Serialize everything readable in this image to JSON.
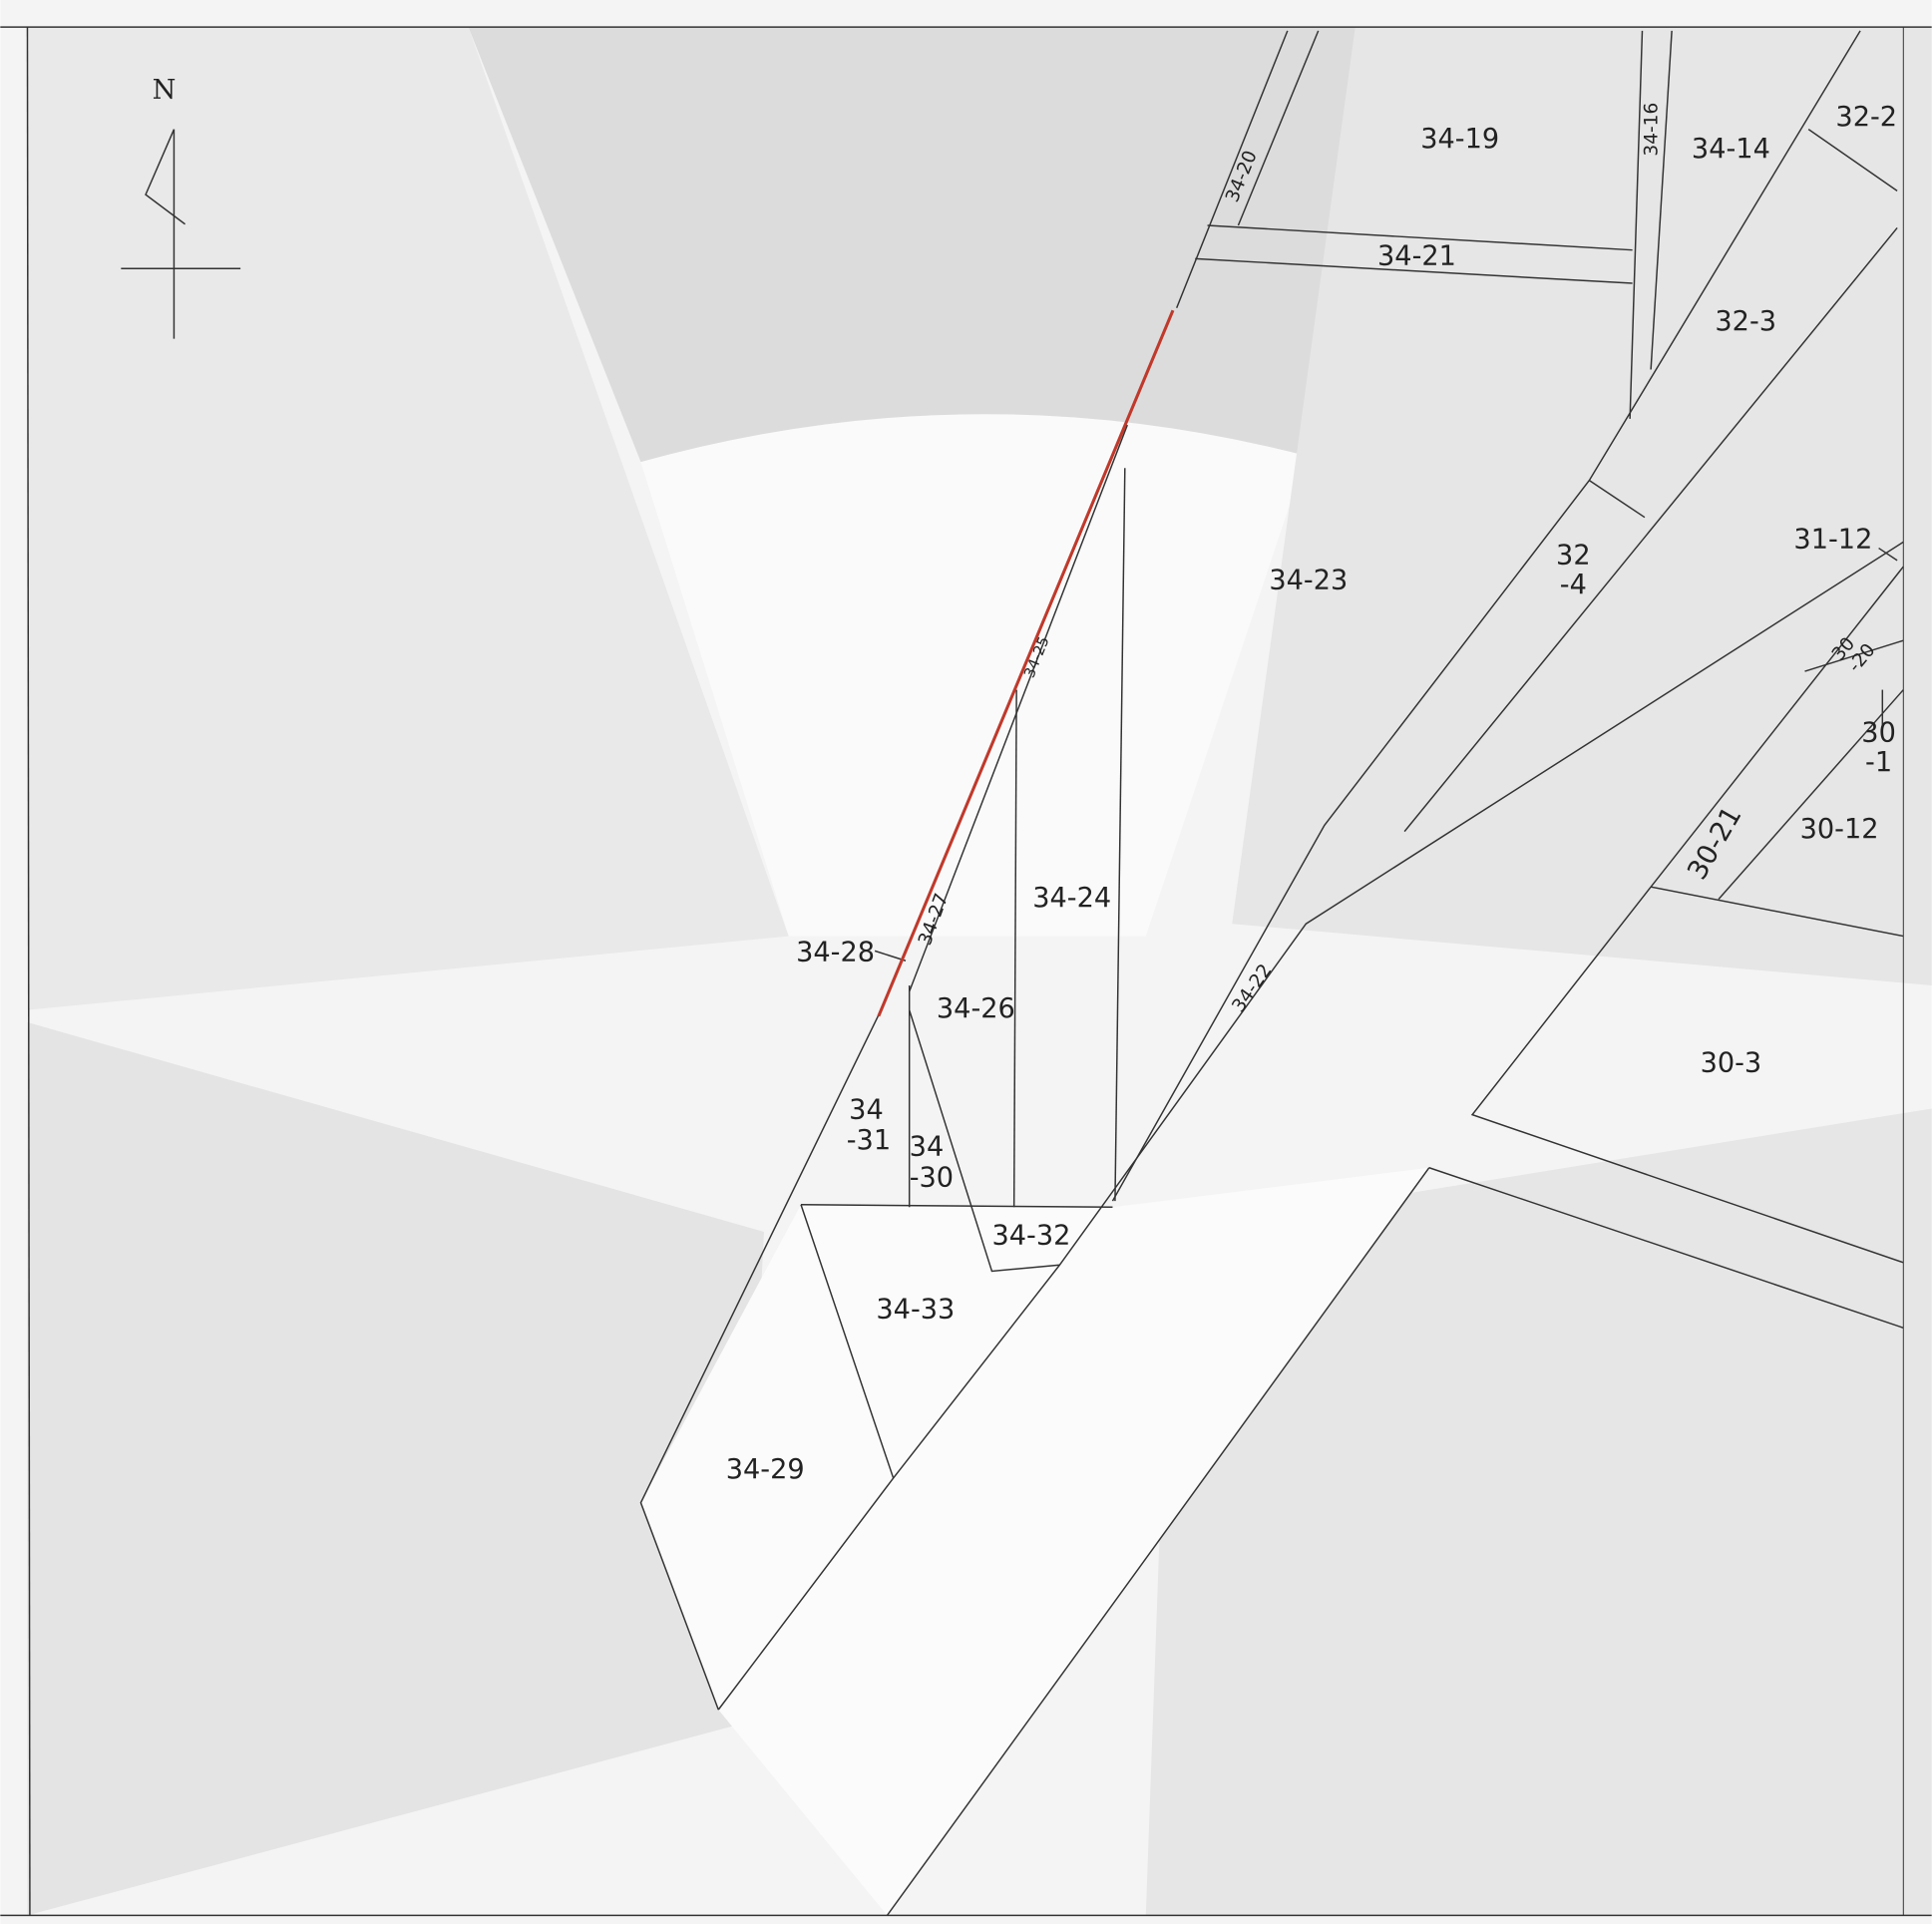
{
  "north_label": "N",
  "parcels": [
    {
      "lines": [
        "34-19"
      ]
    },
    {
      "lines": [
        "34-20"
      ]
    },
    {
      "lines": [
        "34-16"
      ]
    },
    {
      "lines": [
        "34-14"
      ]
    },
    {
      "lines": [
        "32-2"
      ]
    },
    {
      "lines": [
        "34-21"
      ]
    },
    {
      "lines": [
        "32-3"
      ]
    },
    {
      "lines": [
        "34-23"
      ]
    },
    {
      "lines": [
        "32",
        "-4"
      ]
    },
    {
      "lines": [
        "31-12"
      ]
    },
    {
      "lines": [
        "30",
        "-20"
      ]
    },
    {
      "lines": [
        "30",
        "-1"
      ]
    },
    {
      "lines": [
        "30-21"
      ]
    },
    {
      "lines": [
        "30-12"
      ]
    },
    {
      "lines": [
        "30-3"
      ]
    },
    {
      "lines": [
        "34-25"
      ]
    },
    {
      "lines": [
        "34-24"
      ]
    },
    {
      "lines": [
        "34-27"
      ]
    },
    {
      "lines": [
        "34-28"
      ]
    },
    {
      "lines": [
        "34-26"
      ]
    },
    {
      "lines": [
        "34-22"
      ]
    },
    {
      "lines": [
        "34",
        "-31"
      ]
    },
    {
      "lines": [
        "34",
        "-30"
      ]
    },
    {
      "lines": [
        "34-32"
      ]
    },
    {
      "lines": [
        "34-33"
      ]
    },
    {
      "lines": [
        "34-29"
      ]
    }
  ]
}
